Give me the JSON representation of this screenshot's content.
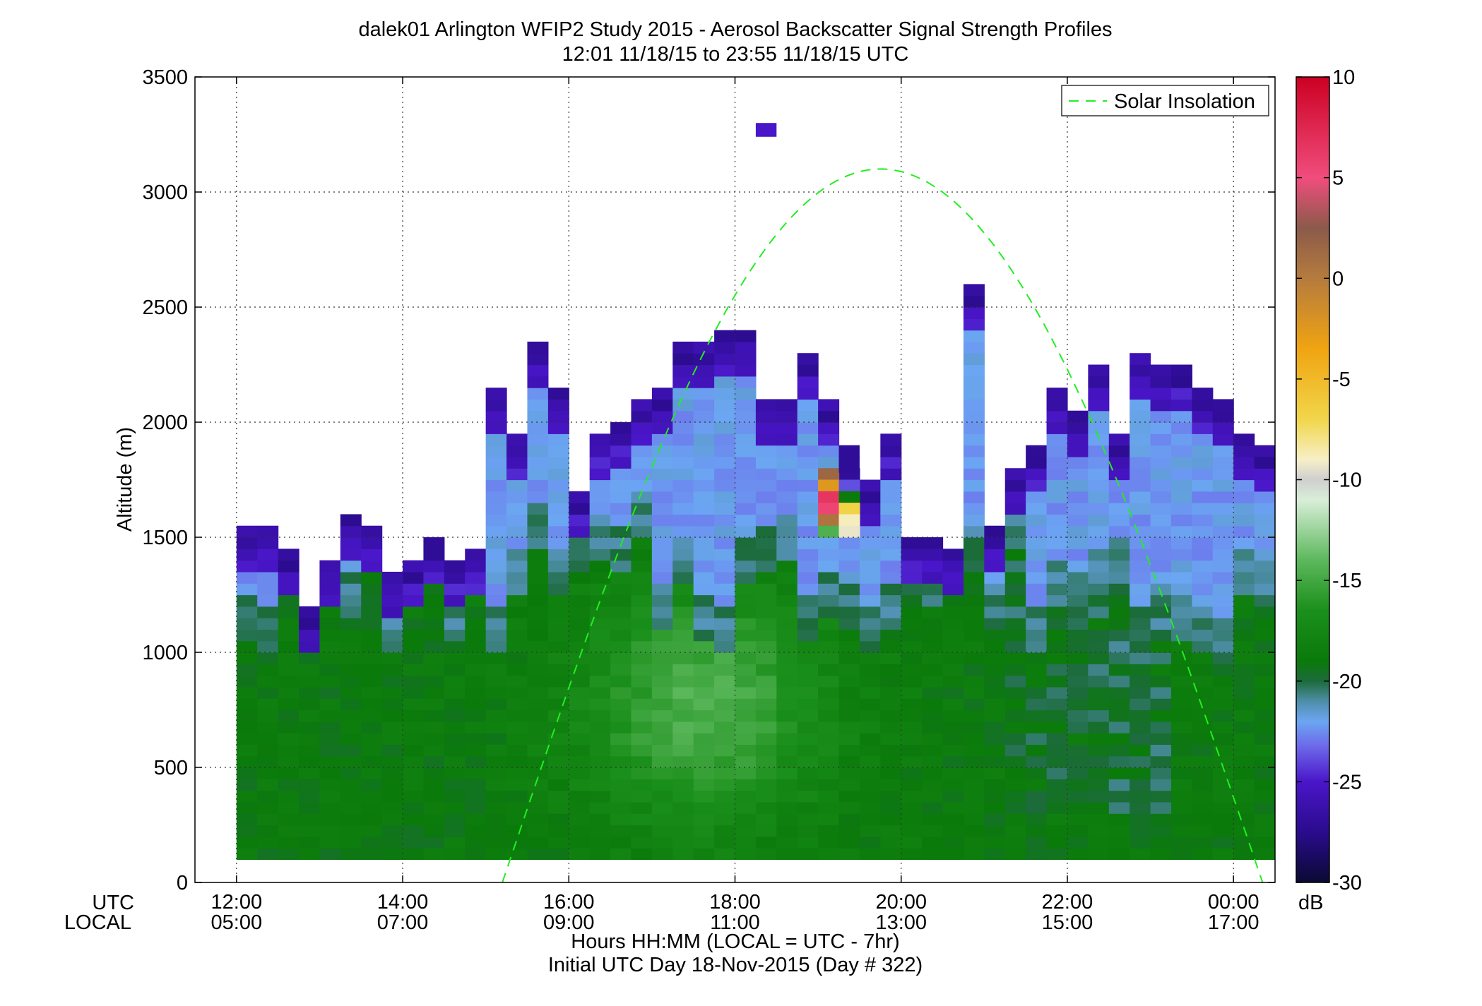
{
  "chart_data": {
    "type": "heatmap",
    "title": "dalek01 Arlington WFIP2 Study 2015 - Aerosol Backscatter Signal Strength Profiles",
    "subtitle": "12:01 11/18/15 to 23:55 11/18/15  UTC",
    "ylabel": "Altitude (m)",
    "xlabel": "Hours HH:MM  (LOCAL = UTC - 7hr)",
    "xlabel2": "Initial UTC Day 18-Nov-2015 (Day # 322)",
    "x_row_labels": [
      "UTC",
      "LOCAL"
    ],
    "xlim_hours": [
      11.5,
      24.5
    ],
    "ylim": [
      0,
      3500
    ],
    "y_ticks": [
      "0",
      "500",
      "1000",
      "1500",
      "2000",
      "2500",
      "3000",
      "3500"
    ],
    "x_ticks": [
      {
        "hour": 12,
        "utc": "12:00",
        "local": "05:00"
      },
      {
        "hour": 14,
        "utc": "14:00",
        "local": "07:00"
      },
      {
        "hour": 16,
        "utc": "16:00",
        "local": "09:00"
      },
      {
        "hour": 18,
        "utc": "18:00",
        "local": "11:00"
      },
      {
        "hour": 20,
        "utc": "20:00",
        "local": "13:00"
      },
      {
        "hour": 22,
        "utc": "22:00",
        "local": "15:00"
      },
      {
        "hour": 24,
        "utc": "00:00",
        "local": "17:00"
      }
    ],
    "grid": true,
    "time_step_hours": 0.25,
    "range_gate_m": 50,
    "profile_start_hour": 12,
    "profile_end_hour": 24,
    "profile_bottom_m": 100,
    "profile_tops_m": [
      1550,
      1550,
      1450,
      1200,
      1400,
      1600,
      1550,
      1350,
      1400,
      1500,
      1400,
      1450,
      2150,
      1950,
      2350,
      2150,
      1700,
      1950,
      2000,
      2100,
      2150,
      2350,
      2350,
      2400,
      2400,
      2100,
      2100,
      2300,
      2100,
      1800,
      1750,
      1950,
      1500,
      1500,
      1450,
      2600,
      1550,
      1800,
      1900,
      2150,
      2050,
      2250,
      1950,
      2300,
      2250,
      2250,
      2150,
      2100,
      1950,
      1900,
      1950
    ],
    "isolated_cells": [
      {
        "hour": 18.25,
        "altitude_m": 3300,
        "db": -25
      },
      {
        "hour": 19.25,
        "altitude_m": 1900,
        "db": -27
      }
    ],
    "series": [
      {
        "name": "Solar Insolation",
        "peak_hour": 19.75,
        "rise_hour": 15.2,
        "set_hour": 24.35,
        "peak_altitude_m": 3100,
        "style": "dashed",
        "color": "#22ee22"
      }
    ],
    "legend_position": "top-right",
    "colorbar": {
      "unit": "dB",
      "range": [
        -30,
        10
      ],
      "ticks": [
        "-30",
        "-25",
        "-20",
        "-15",
        "-10",
        "-5",
        "0",
        "5",
        "10"
      ],
      "stops": [
        {
          "v": -30,
          "c": "#0a0a33"
        },
        {
          "v": -27.5,
          "c": "#2a0b8c"
        },
        {
          "v": -25,
          "c": "#4a16c9"
        },
        {
          "v": -23.2,
          "c": "#6d6bea"
        },
        {
          "v": -22,
          "c": "#6ba6f2"
        },
        {
          "v": -21,
          "c": "#4e8ea8"
        },
        {
          "v": -20,
          "c": "#1c6b3c"
        },
        {
          "v": -19,
          "c": "#0a7a0a"
        },
        {
          "v": -16.5,
          "c": "#1b8f1b"
        },
        {
          "v": -14,
          "c": "#5cb85c"
        },
        {
          "v": -11,
          "c": "#d9eed9"
        },
        {
          "v": -10,
          "c": "#cfcfcf"
        },
        {
          "v": -9,
          "c": "#f7efc8"
        },
        {
          "v": -7,
          "c": "#f1d64b"
        },
        {
          "v": -3.5,
          "c": "#f0a411"
        },
        {
          "v": 0,
          "c": "#b57b3e"
        },
        {
          "v": 2.5,
          "c": "#8b5a4a"
        },
        {
          "v": 5,
          "c": "#f04d7d"
        },
        {
          "v": 10,
          "c": "#cc0022"
        }
      ]
    }
  }
}
